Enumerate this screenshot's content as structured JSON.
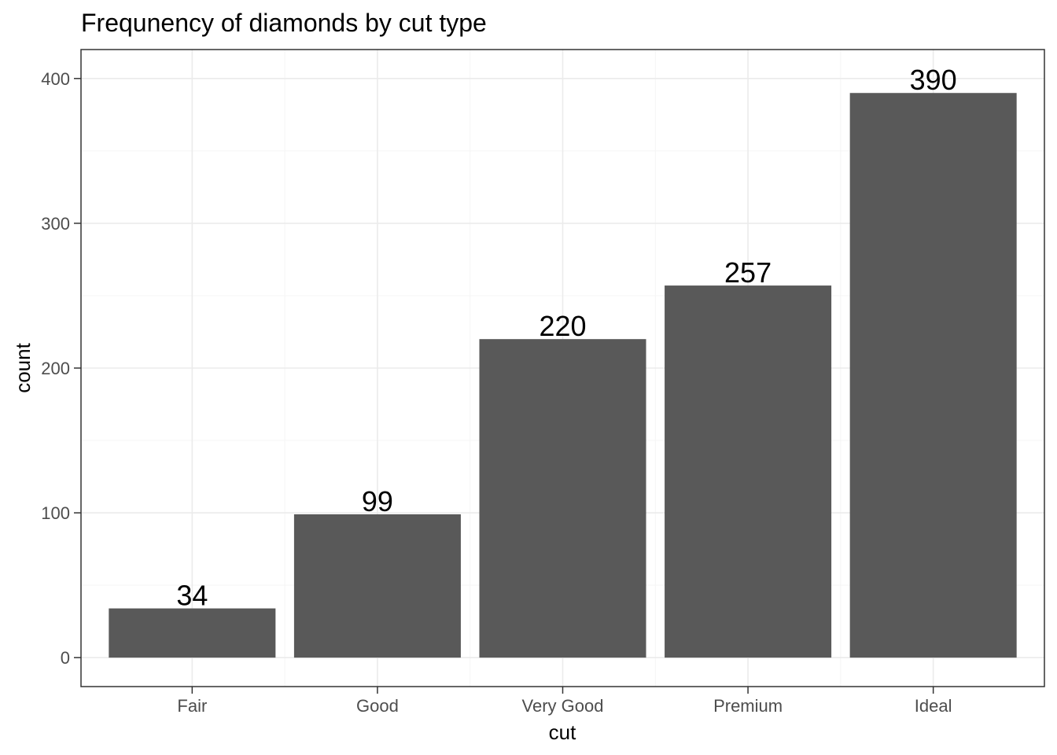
{
  "chart_data": {
    "type": "bar",
    "title": "Frequnency of diamonds by cut type",
    "xlabel": "cut",
    "ylabel": "count",
    "categories": [
      "Fair",
      "Good",
      "Very Good",
      "Premium",
      "Ideal"
    ],
    "values": [
      34,
      99,
      220,
      257,
      390
    ],
    "data_labels": [
      "34",
      "99",
      "220",
      "257",
      "390"
    ],
    "ylim": [
      -20,
      420
    ],
    "yticks": [
      0,
      100,
      200,
      300,
      400
    ],
    "ytick_labels": [
      "0",
      "100",
      "200",
      "300",
      "400"
    ],
    "grid": true,
    "legend": "none",
    "colors": {
      "bar": "#595959",
      "panel_border": "#333333",
      "grid_major": "#ebebeb",
      "grid_minor": "#f5f5f5",
      "tick_label": "#4d4d4d"
    }
  }
}
